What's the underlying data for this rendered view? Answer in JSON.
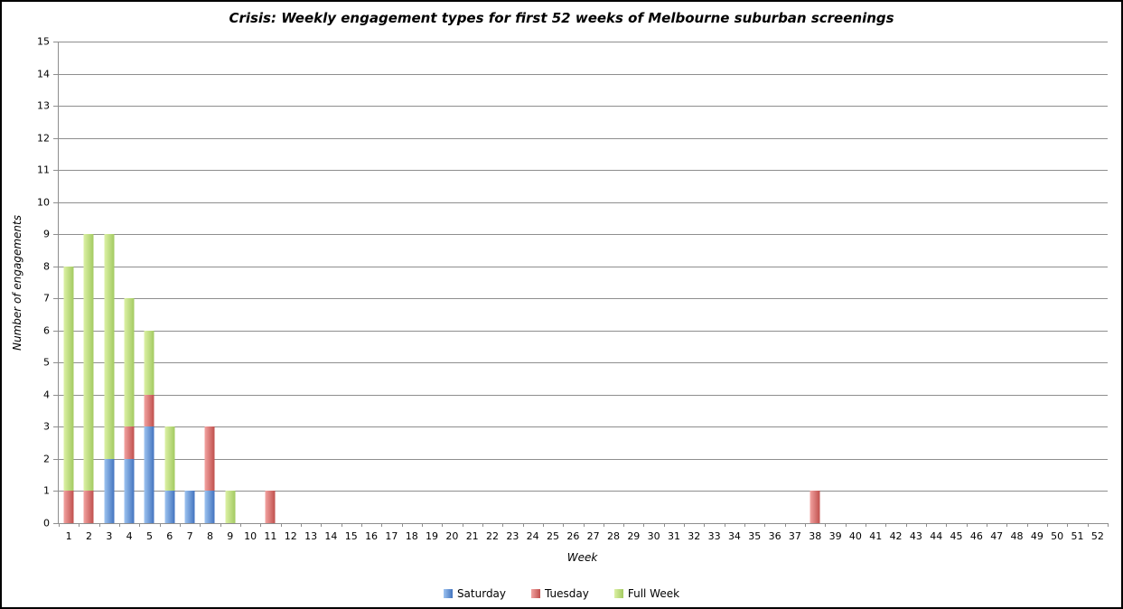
{
  "chart_data": {
    "type": "bar",
    "stacked": true,
    "title": "Crisis: Weekly engagement types for first 52 weeks of Melbourne suburban screenings",
    "xlabel": "Week",
    "ylabel": "Number of engagements",
    "ylim": [
      0,
      15
    ],
    "ytick_step": 1,
    "grid": true,
    "legend_position": "bottom",
    "categories": [
      1,
      2,
      3,
      4,
      5,
      6,
      7,
      8,
      9,
      10,
      11,
      12,
      13,
      14,
      15,
      16,
      17,
      18,
      19,
      20,
      21,
      22,
      23,
      24,
      25,
      26,
      27,
      28,
      29,
      30,
      31,
      32,
      33,
      34,
      35,
      36,
      37,
      38,
      39,
      40,
      41,
      42,
      43,
      44,
      45,
      46,
      47,
      48,
      49,
      50,
      51,
      52
    ],
    "series": [
      {
        "name": "Saturday",
        "color_light": "#9dc3f0",
        "color_dark": "#4374bf",
        "values": [
          0,
          0,
          2,
          2,
          3,
          1,
          1,
          1,
          0,
          0,
          0,
          0,
          0,
          0,
          0,
          0,
          0,
          0,
          0,
          0,
          0,
          0,
          0,
          0,
          0,
          0,
          0,
          0,
          0,
          0,
          0,
          0,
          0,
          0,
          0,
          0,
          0,
          0,
          0,
          0,
          0,
          0,
          0,
          0,
          0,
          0,
          0,
          0,
          0,
          0,
          0,
          0
        ]
      },
      {
        "name": "Tuesday",
        "color_light": "#f2a3a1",
        "color_dark": "#c0504d",
        "values": [
          1,
          1,
          0,
          1,
          1,
          0,
          0,
          2,
          0,
          0,
          1,
          0,
          0,
          0,
          0,
          0,
          0,
          0,
          0,
          0,
          0,
          0,
          0,
          0,
          0,
          0,
          0,
          0,
          0,
          0,
          0,
          0,
          0,
          0,
          0,
          0,
          0,
          1,
          0,
          0,
          0,
          0,
          0,
          0,
          0,
          0,
          0,
          0,
          0,
          0,
          0,
          0
        ]
      },
      {
        "name": "Full Week",
        "color_light": "#dcf1a5",
        "color_dark": "#a3ca61",
        "values": [
          7,
          8,
          7,
          4,
          2,
          2,
          0,
          0,
          1,
          0,
          0,
          0,
          0,
          0,
          0,
          0,
          0,
          0,
          0,
          0,
          0,
          0,
          0,
          0,
          0,
          0,
          0,
          0,
          0,
          0,
          0,
          0,
          0,
          0,
          0,
          0,
          0,
          0,
          0,
          0,
          0,
          0,
          0,
          0,
          0,
          0,
          0,
          0,
          0,
          0,
          0,
          0
        ]
      }
    ],
    "colors": {
      "gridline": "#8e8e8e",
      "axis": "#8e8e8e",
      "text": "#000000",
      "background": "#ffffff",
      "border": "#000000"
    }
  }
}
